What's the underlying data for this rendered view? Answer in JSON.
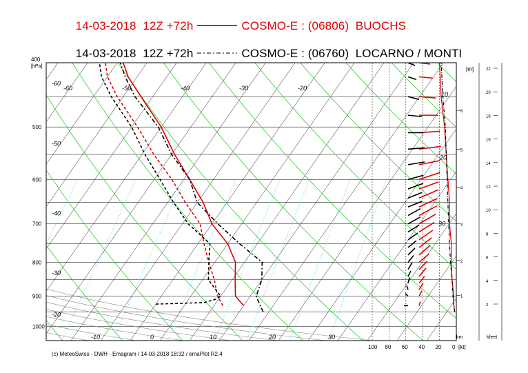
{
  "header": {
    "line1": {
      "date": "14-03-2018",
      "run": "12Z +72h",
      "model": "COSMO-E : (06806)",
      "station": "BUOCHS",
      "color": "#e00000"
    },
    "line2": {
      "date": "14-03-2018",
      "run": "12Z +72h",
      "model": "COSMO-E : (06760)",
      "station": "LOCARNO / MONTI",
      "color": "#000000"
    }
  },
  "credit": "(c) MeteoSwiss - DWH - Emagram / 14-03-2018  18:32 / emaPlot R2.4",
  "chart_data": {
    "type": "line",
    "subtype": "emagram",
    "yaxis": {
      "label": "[hPa]",
      "ticks": [
        400,
        500,
        600,
        700,
        800,
        900,
        1000
      ],
      "range": [
        400,
        1050
      ],
      "scale": "log"
    },
    "xaxis": {
      "ticks": [
        -10,
        0,
        10,
        20,
        30
      ],
      "range": [
        -15,
        40
      ]
    },
    "isotherm_labels": [
      -60,
      -50,
      -40,
      -30,
      -20,
      -60,
      -50,
      -40,
      -30,
      -20
    ],
    "wind_axis": {
      "ticks": [
        "100",
        "80",
        "60",
        "40",
        "20",
        "0"
      ],
      "unit": "[kt]"
    },
    "height_km": {
      "label": "[m]",
      "unit_label": "km",
      "ticks": [
        "1",
        "2",
        "3",
        "4",
        "5",
        "6"
      ]
    },
    "height_kfeet": {
      "unit_label": "kfeet",
      "ticks": [
        "2",
        "4",
        "6",
        "8",
        "10",
        "12",
        "14",
        "16",
        "18",
        "20",
        "22"
      ]
    },
    "speed_labels": [
      "10",
      "20",
      "30"
    ],
    "series": [
      {
        "name": "BUOCHS",
        "variable": "temperature",
        "style": "solid",
        "color": "#e00000",
        "p": [
          930,
          900,
          850,
          800,
          750,
          700,
          650,
          600,
          550,
          500,
          450,
          420,
          400
        ],
        "t": [
          10,
          7.5,
          5.5,
          3.5,
          0,
          -5,
          -9,
          -14,
          -19.5,
          -25,
          -32,
          -36.5,
          -39
        ]
      },
      {
        "name": "BUOCHS",
        "variable": "dewpoint",
        "style": "dashed",
        "color": "#e00000",
        "p": [
          930,
          915,
          900,
          870,
          850,
          800,
          750,
          700,
          650,
          600,
          550,
          500,
          450,
          420,
          400
        ],
        "t": [
          6.5,
          5.5,
          4.5,
          3,
          2,
          -1,
          -4,
          -7,
          -12,
          -17,
          -23,
          -29,
          -36,
          -40,
          -42
        ]
      },
      {
        "name": "LOCARNO / MONTI",
        "variable": "temperature",
        "style": "dashdot",
        "color": "#000000",
        "p": [
          950,
          925,
          900,
          850,
          800,
          750,
          700,
          650,
          600,
          550,
          500,
          450,
          420,
          400
        ],
        "t": [
          14,
          12.5,
          11,
          10,
          8,
          2,
          -4,
          -10,
          -14,
          -20,
          -25.5,
          -33,
          -37,
          -39.5
        ]
      },
      {
        "name": "LOCARNO / MONTI",
        "variable": "dewpoint",
        "style": "dashed",
        "color": "#000000",
        "p": [
          925,
          920,
          910,
          900,
          850,
          800,
          750,
          700,
          650,
          600,
          550,
          500,
          450,
          420,
          400
        ],
        "t": [
          -5,
          3,
          4.5,
          5,
          1,
          -1,
          -3,
          -9,
          -14,
          -19,
          -24.5,
          -30,
          -37,
          -41,
          -43
        ]
      },
      {
        "name": "BUOCHS",
        "variable": "wind_speed",
        "style": "solid",
        "color": "#e00000",
        "p": [
          950,
          925,
          900,
          850,
          800,
          750,
          700,
          650,
          600,
          550,
          500,
          450,
          400
        ],
        "kt": [
          2,
          3,
          3,
          5,
          6,
          6,
          8,
          8,
          10,
          12,
          14,
          18,
          20
        ]
      },
      {
        "name": "LOCARNO / MONTI",
        "variable": "wind_speed",
        "style": "dashdot",
        "color": "#000000",
        "p": [
          950,
          925,
          900,
          850,
          800,
          750,
          700,
          650,
          600,
          550,
          500,
          450,
          400
        ],
        "kt": [
          2,
          3,
          4,
          5,
          7,
          8,
          9,
          10,
          11,
          12,
          13,
          16,
          18
        ]
      },
      {
        "name": "BUOCHS",
        "variable": "wind_vectors",
        "color": "#e00000",
        "p": [
          930,
          900,
          880,
          860,
          840,
          820,
          800,
          780,
          760,
          740,
          720,
          700,
          680,
          660,
          640,
          620,
          600,
          570,
          540,
          510,
          480,
          450,
          420,
          400
        ],
        "dx": [
          2,
          4,
          6,
          8,
          10,
          12,
          14,
          16,
          18,
          20,
          22,
          24,
          26,
          26,
          28,
          28,
          30,
          30,
          32,
          30,
          28,
          24,
          20,
          16
        ],
        "dy": [
          -6,
          -8,
          -10,
          -10,
          -12,
          -12,
          -12,
          -14,
          -14,
          -14,
          -14,
          -14,
          -14,
          -12,
          -12,
          -10,
          -10,
          -6,
          -4,
          -2,
          0,
          2,
          2,
          2
        ]
      },
      {
        "name": "LOCARNO / MONTI",
        "variable": "wind_vectors",
        "color": "#000000",
        "p": [
          930,
          900,
          880,
          860,
          840,
          820,
          800,
          780,
          760,
          740,
          720,
          700,
          680,
          660,
          640,
          620,
          600,
          570,
          540,
          510,
          480,
          450,
          420,
          400
        ],
        "dx": [
          -6,
          -4,
          -2,
          2,
          4,
          6,
          8,
          10,
          12,
          14,
          16,
          18,
          18,
          20,
          20,
          22,
          22,
          24,
          24,
          22,
          20,
          16,
          12,
          10
        ],
        "dy": [
          0,
          -4,
          -6,
          -8,
          -8,
          -10,
          -10,
          -10,
          -10,
          -10,
          -10,
          -10,
          -10,
          -8,
          -8,
          -8,
          -6,
          -4,
          -2,
          0,
          2,
          4,
          4,
          4
        ]
      }
    ]
  }
}
